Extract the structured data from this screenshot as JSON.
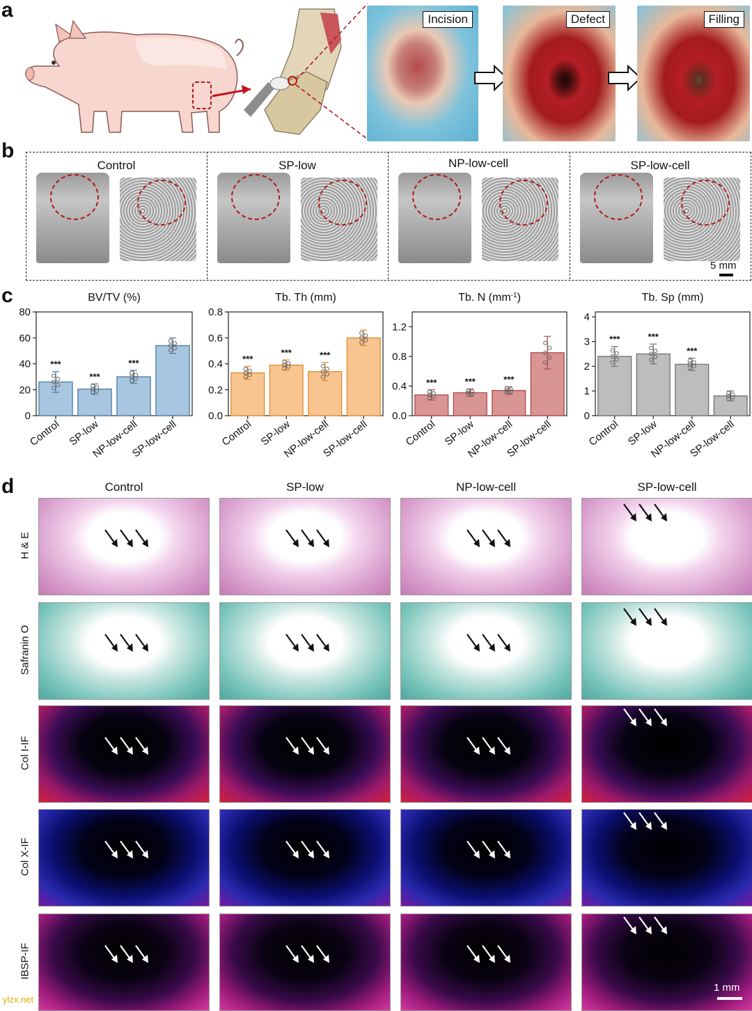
{
  "panel_labels": {
    "a": "a",
    "b": "b",
    "c": "c",
    "d": "d"
  },
  "panel_a": {
    "steps": [
      "Incision",
      "Defect",
      "Filling"
    ]
  },
  "panel_b": {
    "groups": [
      "Control",
      "SP-low",
      "NP-low-cell",
      "SP-low-cell"
    ],
    "scale_bar": "5 mm"
  },
  "chart_data": [
    {
      "type": "bar",
      "title": "BV/TV (%)",
      "categories": [
        "Control",
        "SP-low",
        "NP-low-cell",
        "SP-low-cell"
      ],
      "values": [
        26,
        20.5,
        30,
        54
      ],
      "errors": [
        8,
        4,
        5,
        6
      ],
      "significance": [
        "***",
        "***",
        "***",
        ""
      ],
      "ylim": [
        0,
        80
      ],
      "yticks": [
        "0",
        "20",
        "40",
        "60",
        "80"
      ],
      "color": "#a8c6df",
      "edge": "#4a7aa6"
    },
    {
      "type": "bar",
      "title": "Tb. Th (mm)",
      "categories": [
        "Control",
        "SP-low",
        "NP-low-cell",
        "SP-low-cell"
      ],
      "values": [
        0.33,
        0.39,
        0.34,
        0.6
      ],
      "errors": [
        0.05,
        0.04,
        0.07,
        0.06
      ],
      "significance": [
        "***",
        "***",
        "***",
        ""
      ],
      "ylim": [
        0,
        0.8
      ],
      "yticks": [
        "0.0",
        "0.2",
        "0.4",
        "0.6",
        "0.8"
      ],
      "color": "#f8c48f",
      "edge": "#e08a30"
    },
    {
      "type": "bar",
      "title": "Tb. N (mm",
      "title_sup": "-1",
      "title_end": ")",
      "categories": [
        "Control",
        "SP-low",
        "NP-low-cell",
        "SP-low-cell"
      ],
      "values": [
        0.28,
        0.31,
        0.34,
        0.85
      ],
      "errors": [
        0.07,
        0.05,
        0.05,
        0.22
      ],
      "significance": [
        "***",
        "***",
        "***",
        ""
      ],
      "ylim": [
        0,
        1.4
      ],
      "yticks": [
        "0.0",
        "0.4",
        "0.8",
        "1.2"
      ],
      "ytick_values": [
        0,
        0.4,
        0.8,
        1.2
      ],
      "color": "#d99494",
      "edge": "#a94848"
    },
    {
      "type": "bar",
      "title": "Tb. Sp (mm)",
      "categories": [
        "Control",
        "SP-low",
        "NP-low-cell",
        "SP-low-cell"
      ],
      "values": [
        2.4,
        2.5,
        2.08,
        0.8
      ],
      "errors": [
        0.4,
        0.4,
        0.25,
        0.2
      ],
      "significance": [
        "***",
        "***",
        "***",
        ""
      ],
      "ylim": [
        0,
        4.2
      ],
      "yticks": [
        "0",
        "1",
        "2",
        "3",
        "4"
      ],
      "ytick_values": [
        0,
        1,
        2,
        3,
        4
      ],
      "color": "#bdbdbd",
      "edge": "#707070"
    }
  ],
  "panel_d": {
    "columns": [
      "Control",
      "SP-low",
      "NP-low-cell",
      "SP-low-cell"
    ],
    "rows": [
      "H & E",
      "Safranin O",
      "Col I-IF",
      "Col X-IF",
      "IBSP-IF"
    ],
    "scale_bar": "1 mm",
    "watermark": "ylzx.net"
  },
  "colors": {
    "he_bg": "#e9bfe0",
    "saf_bg": "#8fcfc8",
    "if_bg": "#07051c",
    "surgery_red": "#b41e24",
    "dash_red": "#b01818"
  }
}
